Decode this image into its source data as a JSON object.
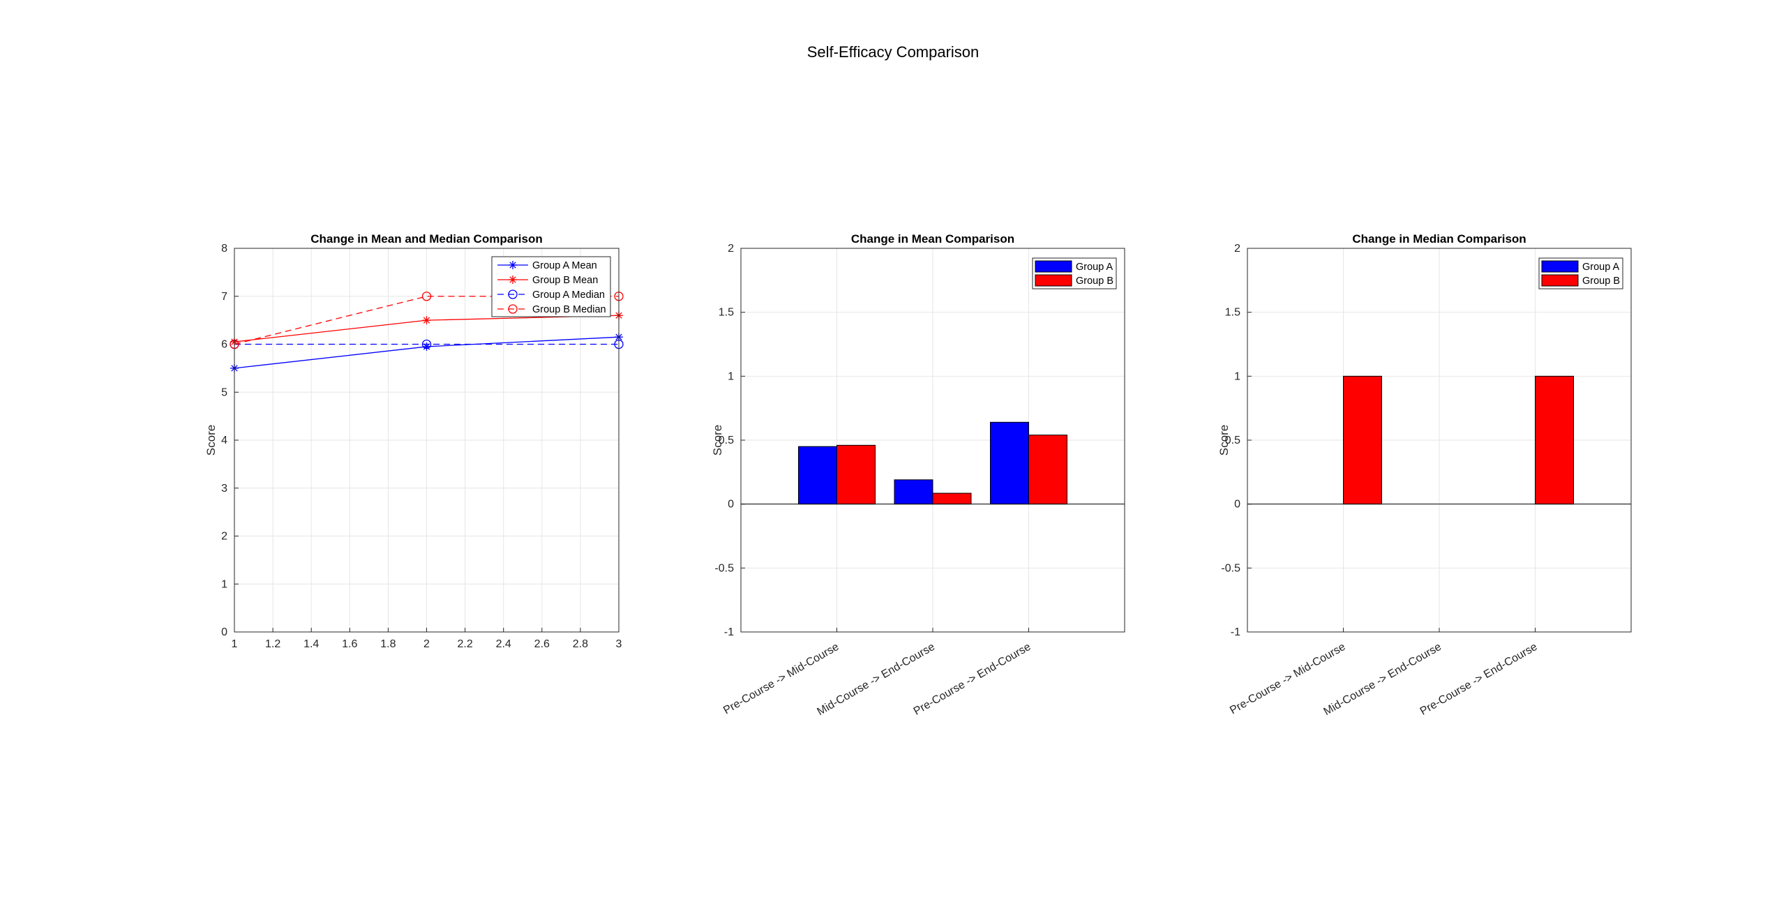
{
  "figure_title": "Self-Efficacy Comparison",
  "chart_data": [
    {
      "type": "line",
      "title": "Change in Mean and Median Comparison",
      "xlabel": "",
      "ylabel": "Score",
      "xlim": [
        1,
        3
      ],
      "ylim": [
        0,
        8
      ],
      "xticks": [
        1,
        1.2,
        1.4,
        1.6,
        1.8,
        2,
        2.2,
        2.4,
        2.6,
        2.8,
        3
      ],
      "xtick_labels": [
        "1",
        "1.2",
        "1.4",
        "1.6",
        "1.8",
        "2",
        "2.2",
        "2.4",
        "2.6",
        "2.8",
        "3"
      ],
      "yticks": [
        0,
        1,
        2,
        3,
        4,
        5,
        6,
        7,
        8
      ],
      "ytick_labels": [
        "0",
        "1",
        "2",
        "3",
        "4",
        "5",
        "6",
        "7",
        "8"
      ],
      "grid": true,
      "legend_position": "top-right",
      "x": [
        1,
        2,
        3
      ],
      "series": [
        {
          "name": "Group A Mean",
          "values": [
            5.5,
            5.95,
            6.15
          ],
          "color": "#0000ff",
          "line": "solid",
          "marker": "asterisk"
        },
        {
          "name": "Group B Mean",
          "values": [
            6.05,
            6.5,
            6.6
          ],
          "color": "#ff0000",
          "line": "solid",
          "marker": "asterisk"
        },
        {
          "name": "Group A Median",
          "values": [
            6,
            6,
            6
          ],
          "color": "#0000ff",
          "line": "dashed",
          "marker": "circle"
        },
        {
          "name": "Group B Median",
          "values": [
            6,
            7,
            7
          ],
          "color": "#ff0000",
          "line": "dashed",
          "marker": "circle"
        }
      ]
    },
    {
      "type": "bar",
      "title": "Change in Mean Comparison",
      "xlabel": "",
      "ylabel": "Score",
      "ylim": [
        -1,
        2
      ],
      "yticks": [
        -1,
        -0.5,
        0,
        0.5,
        1,
        1.5,
        2
      ],
      "ytick_labels": [
        "-1",
        "-0.5",
        "0",
        "0.5",
        "1",
        "1.5",
        "2"
      ],
      "grid": true,
      "legend_position": "top-right",
      "categories": [
        "Pre-Course -> Mid-Course",
        "Mid-Course -> End-Course",
        "Pre-Course -> End-Course"
      ],
      "series": [
        {
          "name": "Group A",
          "values": [
            0.45,
            0.19,
            0.64
          ],
          "color": "#0000ff"
        },
        {
          "name": "Group B",
          "values": [
            0.46,
            0.085,
            0.54
          ],
          "color": "#ff0000"
        }
      ]
    },
    {
      "type": "bar",
      "title": "Change in Median Comparison",
      "xlabel": "",
      "ylabel": "Score",
      "ylim": [
        -1,
        2
      ],
      "yticks": [
        -1,
        -0.5,
        0,
        0.5,
        1,
        1.5,
        2
      ],
      "ytick_labels": [
        "-1",
        "-0.5",
        "0",
        "0.5",
        "1",
        "1.5",
        "2"
      ],
      "grid": true,
      "legend_position": "top-right",
      "categories": [
        "Pre-Course -> Mid-Course",
        "Mid-Course -> End-Course",
        "Pre-Course -> End-Course"
      ],
      "series": [
        {
          "name": "Group A",
          "values": [
            0,
            0,
            0
          ],
          "color": "#0000ff"
        },
        {
          "name": "Group B",
          "values": [
            1,
            0,
            1
          ],
          "color": "#ff0000"
        }
      ]
    }
  ]
}
